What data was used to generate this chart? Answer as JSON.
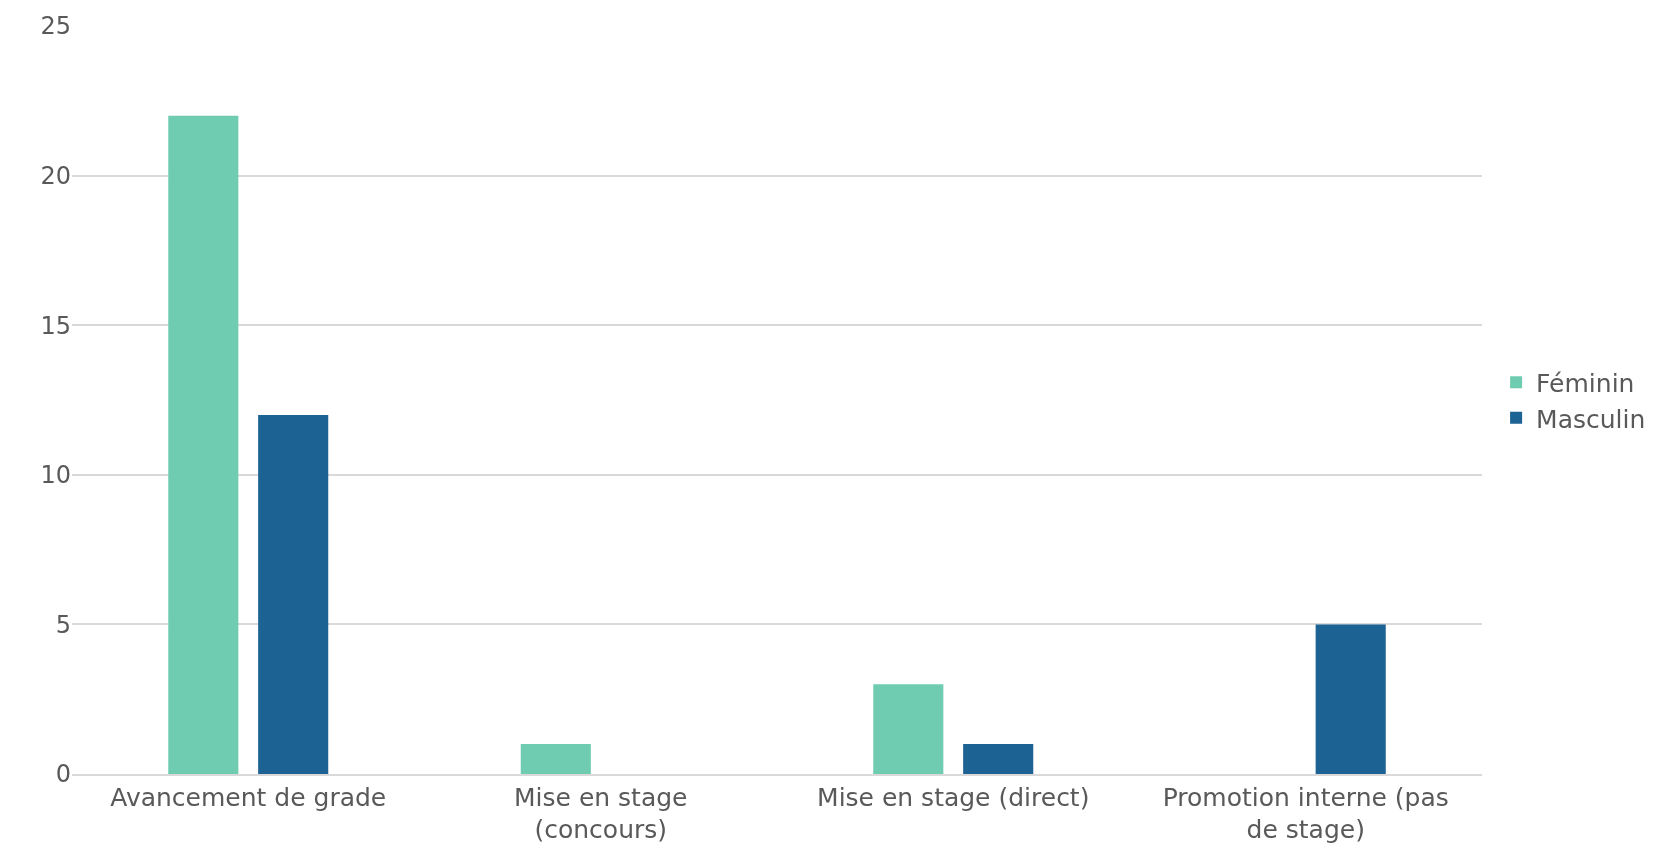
{
  "chart_data": {
    "type": "bar",
    "categories": [
      "Avancement de grade",
      "Mise en stage (concours)",
      "Mise en stage (direct)",
      "Promotion interne (pas de stage)"
    ],
    "series": [
      {
        "name": "Féminin",
        "color": "#70ccb0",
        "values": [
          22,
          1,
          3,
          0
        ]
      },
      {
        "name": "Masculin",
        "color": "#1c6292",
        "values": [
          12,
          0,
          1,
          5
        ]
      }
    ],
    "ylim": [
      0,
      25
    ],
    "yticks": [
      0,
      5,
      10,
      15,
      20,
      25
    ],
    "grid": "y",
    "legend": "right"
  }
}
